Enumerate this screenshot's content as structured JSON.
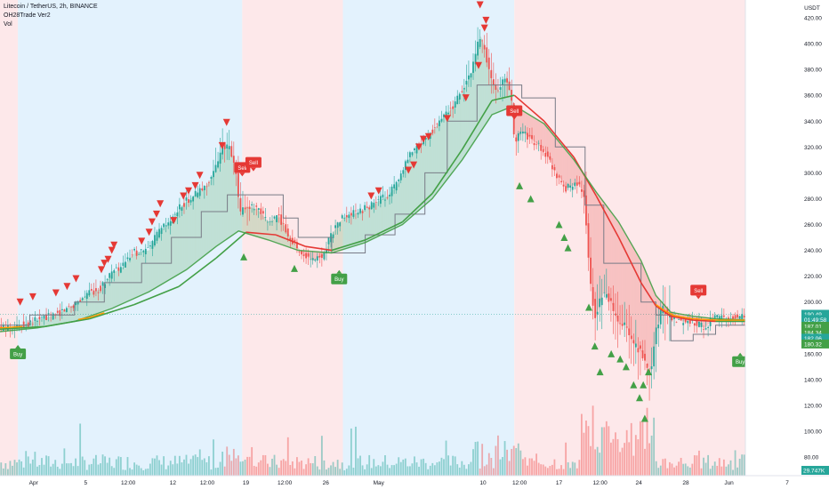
{
  "legend": {
    "symbol_line": "Litecoin / TetherUS, 2h, BINANCE",
    "indicator": "OH28Trade Ver2",
    "volume": "Vol"
  },
  "colors": {
    "up_candle": "#26a69a",
    "down_candle": "#ef5350",
    "buy": "#43a047",
    "sell": "#e53935",
    "bull_zone": "#e3f2fd",
    "bear_zone": "#fde8ea",
    "ma_fast": "#43a047",
    "ma_slow_bear": "#e53935",
    "ma_orange": "#ff9800",
    "step_line": "#787b86"
  },
  "chart_data": {
    "type": "candlestick",
    "timeframe": "2h",
    "exchange": "BINANCE",
    "quote_currency": "USDT",
    "y_axis": {
      "label": "USDT",
      "ticks": [
        80.0,
        100.0,
        120.0,
        140.0,
        160.0,
        180.0,
        200.0,
        220.0,
        240.0,
        260.0,
        280.0,
        300.0,
        320.0,
        340.0,
        360.0,
        380.0,
        400.0,
        420.0
      ],
      "tick_labels": [
        "80.00",
        "100.00",
        "120.00",
        "140.00",
        "160.00",
        "180.00",
        "200.00",
        "220.00",
        "240.00",
        "260.00",
        "280.00",
        "300.00",
        "320.00",
        "340.00",
        "360.00",
        "380.00",
        "400.00",
        "420.00"
      ],
      "range": [
        65,
        425
      ]
    },
    "x_axis": {
      "labels": [
        {
          "text": "Apr",
          "x": 0.045
        },
        {
          "text": "5",
          "x": 0.115
        },
        {
          "text": "12:00",
          "x": 0.172
        },
        {
          "text": "12",
          "x": 0.232
        },
        {
          "text": "12:00",
          "x": 0.278
        },
        {
          "text": "19",
          "x": 0.33
        },
        {
          "text": "12:00",
          "x": 0.382
        },
        {
          "text": "26",
          "x": 0.437
        },
        {
          "text": "May",
          "x": 0.508
        },
        {
          "text": "10",
          "x": 0.648
        },
        {
          "text": "12:00",
          "x": 0.697
        },
        {
          "text": "17",
          "x": 0.75
        },
        {
          "text": "12:00",
          "x": 0.805
        },
        {
          "text": "24",
          "x": 0.857
        },
        {
          "text": "28",
          "x": 0.92
        },
        {
          "text": "Jun",
          "x": 0.978
        }
      ],
      "extra_labels": [
        {
          "text": "7",
          "x": 1.06
        }
      ]
    },
    "price_path": [
      [
        0.0,
        180
      ],
      [
        0.025,
        181
      ],
      [
        0.05,
        186
      ],
      [
        0.075,
        190
      ],
      [
        0.1,
        198
      ],
      [
        0.12,
        207
      ],
      [
        0.135,
        210
      ],
      [
        0.15,
        222
      ],
      [
        0.165,
        227
      ],
      [
        0.18,
        238
      ],
      [
        0.2,
        240
      ],
      [
        0.215,
        255
      ],
      [
        0.23,
        262
      ],
      [
        0.245,
        275
      ],
      [
        0.26,
        282
      ],
      [
        0.275,
        288
      ],
      [
        0.29,
        302
      ],
      [
        0.3,
        322
      ],
      [
        0.31,
        318
      ],
      [
        0.318,
        300
      ],
      [
        0.323,
        268
      ],
      [
        0.33,
        274
      ],
      [
        0.345,
        272
      ],
      [
        0.36,
        262
      ],
      [
        0.375,
        266
      ],
      [
        0.39,
        250
      ],
      [
        0.405,
        238
      ],
      [
        0.42,
        232
      ],
      [
        0.435,
        236
      ],
      [
        0.445,
        252
      ],
      [
        0.46,
        265
      ],
      [
        0.475,
        268
      ],
      [
        0.49,
        272
      ],
      [
        0.505,
        277
      ],
      [
        0.52,
        282
      ],
      [
        0.535,
        292
      ],
      [
        0.55,
        312
      ],
      [
        0.565,
        322
      ],
      [
        0.58,
        332
      ],
      [
        0.595,
        343
      ],
      [
        0.61,
        352
      ],
      [
        0.625,
        368
      ],
      [
        0.635,
        380
      ],
      [
        0.645,
        406
      ],
      [
        0.652,
        395
      ],
      [
        0.66,
        372
      ],
      [
        0.67,
        363
      ],
      [
        0.68,
        375
      ],
      [
        0.687,
        360
      ],
      [
        0.692,
        322
      ],
      [
        0.7,
        332
      ],
      [
        0.715,
        325
      ],
      [
        0.73,
        318
      ],
      [
        0.745,
        302
      ],
      [
        0.76,
        288
      ],
      [
        0.775,
        292
      ],
      [
        0.785,
        283
      ],
      [
        0.793,
        215
      ],
      [
        0.8,
        188
      ],
      [
        0.81,
        208
      ],
      [
        0.82,
        200
      ],
      [
        0.83,
        183
      ],
      [
        0.84,
        182
      ],
      [
        0.85,
        168
      ],
      [
        0.86,
        162
      ],
      [
        0.868,
        152
      ],
      [
        0.874,
        145
      ],
      [
        0.882,
        180
      ],
      [
        0.89,
        195
      ],
      [
        0.9,
        189
      ],
      [
        0.915,
        185
      ],
      [
        0.93,
        186
      ],
      [
        0.945,
        180
      ],
      [
        0.96,
        188
      ],
      [
        0.975,
        186
      ],
      [
        0.99,
        189
      ],
      [
        1.0,
        190
      ]
    ],
    "series": [
      {
        "name": "",
        "values": [
          [
            0.0,
            177
          ],
          [
            0.05,
            180
          ],
          [
            0.1,
            185
          ],
          [
            0.15,
            195
          ],
          [
            0.2,
            208
          ],
          [
            0.25,
            225
          ],
          [
            0.29,
            243
          ],
          [
            0.32,
            255
          ],
          [
            0.36,
            248
          ],
          [
            0.4,
            240
          ],
          [
            0.445,
            238
          ],
          [
            0.49,
            246
          ],
          [
            0.54,
            260
          ],
          [
            0.58,
            280
          ],
          [
            0.62,
            310
          ],
          [
            0.66,
            345
          ],
          [
            0.69,
            352
          ],
          [
            0.73,
            338
          ],
          [
            0.77,
            310
          ],
          [
            0.8,
            285
          ],
          [
            0.83,
            262
          ],
          [
            0.86,
            232
          ],
          [
            0.88,
            205
          ],
          [
            0.9,
            192
          ],
          [
            0.93,
            189
          ],
          [
            0.96,
            187
          ],
          [
            1.0,
            186
          ]
        ]
      },
      {
        "name": "",
        "values": [
          [
            0.0,
            179
          ],
          [
            0.06,
            181
          ],
          [
            0.12,
            187
          ],
          [
            0.18,
            198
          ],
          [
            0.24,
            212
          ],
          [
            0.29,
            234
          ],
          [
            0.33,
            254
          ],
          [
            0.37,
            252
          ],
          [
            0.41,
            243
          ],
          [
            0.445,
            240
          ],
          [
            0.49,
            248
          ],
          [
            0.54,
            262
          ],
          [
            0.58,
            284
          ],
          [
            0.62,
            318
          ],
          [
            0.66,
            356
          ],
          [
            0.69,
            360
          ],
          [
            0.73,
            340
          ],
          [
            0.77,
            312
          ],
          [
            0.8,
            282
          ],
          [
            0.83,
            250
          ],
          [
            0.86,
            215
          ],
          [
            0.88,
            197
          ],
          [
            0.9,
            189
          ],
          [
            0.93,
            186
          ],
          [
            0.96,
            185
          ],
          [
            1.0,
            185
          ]
        ]
      },
      {
        "name": "",
        "values": [
          [
            0.0,
            182
          ],
          [
            0.04,
            182
          ],
          [
            0.04,
            190
          ],
          [
            0.1,
            190
          ],
          [
            0.1,
            200
          ],
          [
            0.14,
            200
          ],
          [
            0.14,
            215
          ],
          [
            0.19,
            215
          ],
          [
            0.19,
            230
          ],
          [
            0.23,
            230
          ],
          [
            0.23,
            250
          ],
          [
            0.27,
            250
          ],
          [
            0.27,
            270
          ],
          [
            0.305,
            270
          ],
          [
            0.305,
            283
          ],
          [
            0.38,
            283
          ],
          [
            0.38,
            265
          ],
          [
            0.4,
            265
          ],
          [
            0.4,
            250
          ],
          [
            0.445,
            250
          ],
          [
            0.445,
            238
          ],
          [
            0.49,
            238
          ],
          [
            0.49,
            252
          ],
          [
            0.53,
            252
          ],
          [
            0.53,
            268
          ],
          [
            0.57,
            268
          ],
          [
            0.57,
            300
          ],
          [
            0.6,
            300
          ],
          [
            0.6,
            340
          ],
          [
            0.64,
            340
          ],
          [
            0.64,
            368
          ],
          [
            0.7,
            368
          ],
          [
            0.7,
            358
          ],
          [
            0.745,
            358
          ],
          [
            0.745,
            320
          ],
          [
            0.785,
            320
          ],
          [
            0.785,
            275
          ],
          [
            0.81,
            275
          ],
          [
            0.81,
            230
          ],
          [
            0.86,
            230
          ],
          [
            0.86,
            200
          ],
          [
            0.88,
            200
          ],
          [
            0.88,
            190
          ],
          [
            0.9,
            190
          ],
          [
            0.9,
            170
          ],
          [
            0.93,
            170
          ],
          [
            0.93,
            175
          ],
          [
            0.96,
            175
          ],
          [
            0.96,
            182
          ],
          [
            1.0,
            182
          ]
        ]
      }
    ],
    "zones": [
      {
        "type": "bear",
        "x0": 0.0,
        "x1": 0.024
      },
      {
        "type": "bull",
        "x0": 0.024,
        "x1": 0.325
      },
      {
        "type": "bear",
        "x0": 0.325,
        "x1": 0.46
      },
      {
        "type": "bull",
        "x0": 0.46,
        "x1": 0.69
      },
      {
        "type": "bear",
        "x0": 0.69,
        "x1": 1.0
      }
    ],
    "signals": [
      {
        "type": "Buy",
        "x": 0.024,
        "price": 164
      },
      {
        "type": "Sell",
        "x": 0.325,
        "price": 300
      },
      {
        "type": "Sell",
        "x": 0.34,
        "price": 304
      },
      {
        "type": "Buy",
        "x": 0.455,
        "price": 222
      },
      {
        "type": "Sell",
        "x": 0.69,
        "price": 344
      },
      {
        "type": "Sell",
        "x": 0.937,
        "price": 205
      },
      {
        "type": "Buy",
        "x": 0.993,
        "price": 158
      }
    ],
    "markers": [
      {
        "dir": "down",
        "x": 0.027,
        "price": 200
      },
      {
        "dir": "down",
        "x": 0.044,
        "price": 204
      },
      {
        "dir": "down",
        "x": 0.075,
        "price": 207
      },
      {
        "dir": "down",
        "x": 0.09,
        "price": 212
      },
      {
        "dir": "down",
        "x": 0.102,
        "price": 218
      },
      {
        "dir": "down",
        "x": 0.136,
        "price": 225
      },
      {
        "dir": "down",
        "x": 0.14,
        "price": 230
      },
      {
        "dir": "down",
        "x": 0.145,
        "price": 233
      },
      {
        "dir": "down",
        "x": 0.15,
        "price": 240
      },
      {
        "dir": "down",
        "x": 0.153,
        "price": 244
      },
      {
        "dir": "down",
        "x": 0.19,
        "price": 247
      },
      {
        "dir": "down",
        "x": 0.2,
        "price": 254
      },
      {
        "dir": "down",
        "x": 0.204,
        "price": 262
      },
      {
        "dir": "down",
        "x": 0.21,
        "price": 268
      },
      {
        "dir": "down",
        "x": 0.215,
        "price": 276
      },
      {
        "dir": "down",
        "x": 0.233,
        "price": 263
      },
      {
        "dir": "down",
        "x": 0.246,
        "price": 282
      },
      {
        "dir": "down",
        "x": 0.253,
        "price": 286
      },
      {
        "dir": "down",
        "x": 0.262,
        "price": 290
      },
      {
        "dir": "down",
        "x": 0.268,
        "price": 298
      },
      {
        "dir": "down",
        "x": 0.298,
        "price": 321
      },
      {
        "dir": "down",
        "x": 0.304,
        "price": 339
      },
      {
        "dir": "down",
        "x": 0.498,
        "price": 282
      },
      {
        "dir": "down",
        "x": 0.508,
        "price": 286
      },
      {
        "dir": "down",
        "x": 0.548,
        "price": 302
      },
      {
        "dir": "down",
        "x": 0.555,
        "price": 306
      },
      {
        "dir": "down",
        "x": 0.562,
        "price": 320
      },
      {
        "dir": "down",
        "x": 0.568,
        "price": 326
      },
      {
        "dir": "down",
        "x": 0.575,
        "price": 328
      },
      {
        "dir": "down",
        "x": 0.6,
        "price": 342
      },
      {
        "dir": "down",
        "x": 0.625,
        "price": 358
      },
      {
        "dir": "down",
        "x": 0.642,
        "price": 383
      },
      {
        "dir": "down",
        "x": 0.65,
        "price": 412
      },
      {
        "dir": "down",
        "x": 0.652,
        "price": 418
      },
      {
        "dir": "down",
        "x": 0.644,
        "price": 430
      },
      {
        "dir": "up",
        "x": 0.327,
        "price": 235
      },
      {
        "dir": "up",
        "x": 0.395,
        "price": 226
      },
      {
        "dir": "up",
        "x": 0.697,
        "price": 290
      },
      {
        "dir": "up",
        "x": 0.712,
        "price": 280
      },
      {
        "dir": "up",
        "x": 0.75,
        "price": 260
      },
      {
        "dir": "up",
        "x": 0.757,
        "price": 250
      },
      {
        "dir": "up",
        "x": 0.762,
        "price": 242
      },
      {
        "dir": "up",
        "x": 0.79,
        "price": 196
      },
      {
        "dir": "up",
        "x": 0.798,
        "price": 166
      },
      {
        "dir": "up",
        "x": 0.805,
        "price": 146
      },
      {
        "dir": "up",
        "x": 0.82,
        "price": 160
      },
      {
        "dir": "up",
        "x": 0.832,
        "price": 156
      },
      {
        "dir": "up",
        "x": 0.84,
        "price": 150
      },
      {
        "dir": "up",
        "x": 0.85,
        "price": 136
      },
      {
        "dir": "up",
        "x": 0.858,
        "price": 126
      },
      {
        "dir": "up",
        "x": 0.863,
        "price": 136
      },
      {
        "dir": "up",
        "x": 0.87,
        "price": 146
      },
      {
        "dir": "up",
        "x": 0.865,
        "price": 110
      }
    ],
    "price_tags": [
      {
        "text": "190.49",
        "price": 190.49,
        "color": "#26a69a"
      },
      {
        "text": "01:49:58",
        "price": 186.5,
        "color": "#26a69a"
      },
      {
        "text": "187.01",
        "price": 181.2,
        "color": "#43a047"
      },
      {
        "text": "184.34",
        "price": 176.5,
        "color": "#43a047"
      },
      {
        "text": "182.06",
        "price": 172.0,
        "color": "#26a69a"
      },
      {
        "text": "180.32",
        "price": 167.5,
        "color": "#43a047"
      }
    ],
    "volume_tag": "29.747K"
  }
}
